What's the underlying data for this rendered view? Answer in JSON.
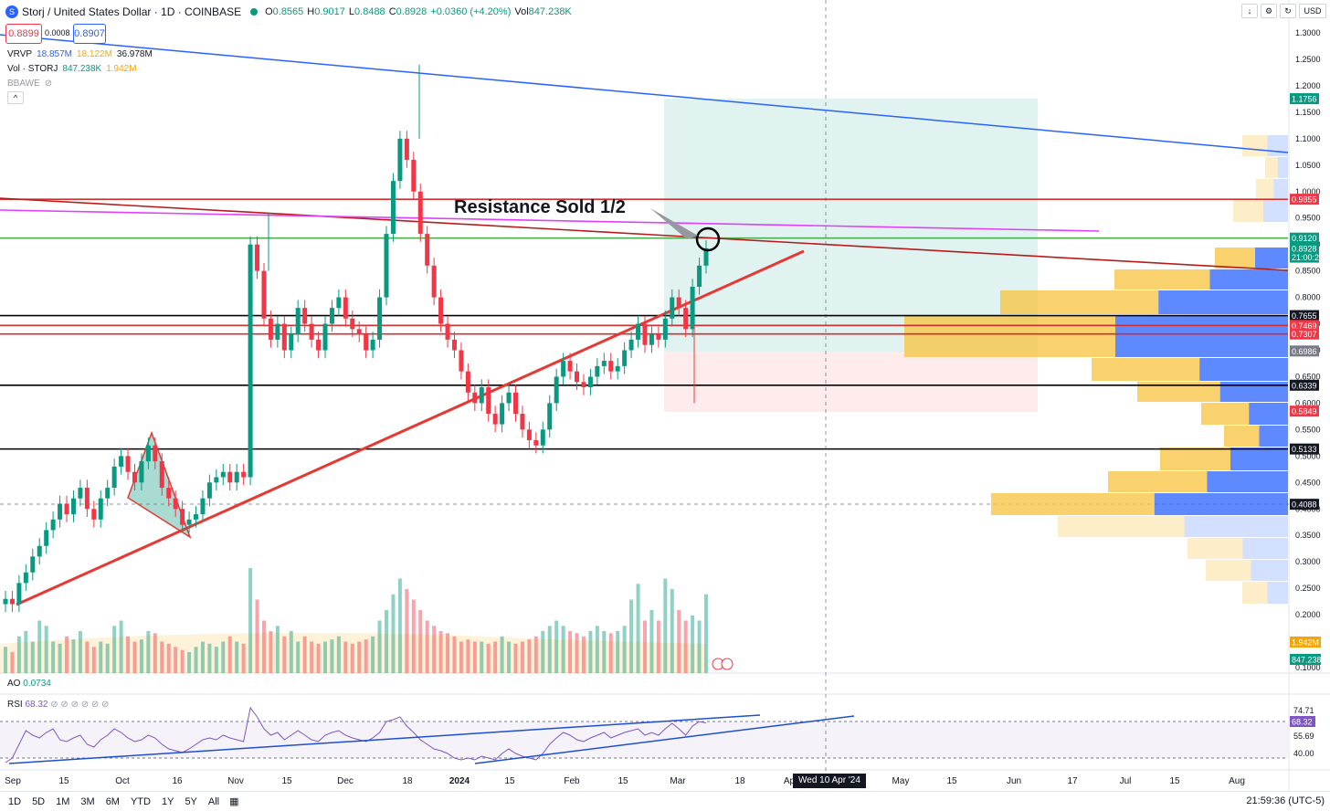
{
  "header": {
    "symbol": "Storj / United States Dollar · 1D · COINBASE",
    "o_label": "O",
    "o": "0.8565",
    "h_label": "H",
    "h": "0.9017",
    "l_label": "L",
    "l": "0.8488",
    "c_label": "C",
    "c": "0.8928",
    "change": "+0.0360 (+4.20%)",
    "vol_label": "Vol",
    "vol": "847.238K",
    "bid": "0.8899",
    "spread": "0.0008",
    "ask": "0.8907",
    "currency": "USD"
  },
  "indicators": {
    "vrvp_name": "VRVP",
    "vrvp_up": "18.857M",
    "vrvp_down": "18.122M",
    "vrvp_total": "36.978M",
    "vol_name": "Vol · STORJ",
    "vol_a": "847.238K",
    "vol_b": "1.942M",
    "bbawe": "BBAWE",
    "ao_name": "AO",
    "ao_val": "0.0734",
    "rsi_name": "RSI",
    "rsi_val": "68.32"
  },
  "annotation": "Resistance Sold 1/2",
  "chart_data": {
    "type": "line",
    "title": "",
    "price_ticks": [
      "1.3000",
      "1.2500",
      "1.2000",
      "1.1500",
      "1.1000",
      "1.0500",
      "1.0000",
      "0.9500",
      "0.9000",
      "0.8500",
      "0.8000",
      "0.7500",
      "0.7000",
      "0.6500",
      "0.6000",
      "0.5500",
      "0.5000",
      "0.4500",
      "0.4000",
      "0.3500",
      "0.3000",
      "0.2500",
      "0.2000",
      "0.1500",
      "0.1000"
    ],
    "price_axis": [
      0.1,
      1.3
    ],
    "price_labels": [
      {
        "text": "1.1756",
        "value": 1.1756,
        "color": "#089981"
      },
      {
        "text": "0.9855",
        "value": 0.9855,
        "color": "#f23645"
      },
      {
        "text": "0.9120",
        "value": 0.912,
        "color": "#089981"
      },
      {
        "text": "0.8928",
        "value": 0.8928,
        "color": "#089981"
      },
      {
        "text": "21:00:23",
        "value": 0.876,
        "color": "#089981"
      },
      {
        "text": "0.7655",
        "value": 0.7655,
        "color": "#131722"
      },
      {
        "text": "0.7469",
        "value": 0.7469,
        "color": "#f23645"
      },
      {
        "text": "0.7307",
        "value": 0.7307,
        "color": "#f23645"
      },
      {
        "text": "0.6986",
        "value": 0.6986,
        "color": "#787b86"
      },
      {
        "text": "0.6339",
        "value": 0.6339,
        "color": "#131722"
      },
      {
        "text": "0.5849",
        "value": 0.5849,
        "color": "#f23645"
      },
      {
        "text": "0.5133",
        "value": 0.5133,
        "color": "#131722"
      },
      {
        "text": "0.4088",
        "value": 0.4088,
        "color": "#131722"
      }
    ],
    "vol_labels": [
      {
        "text": "1.942M",
        "color": "#f7a600"
      },
      {
        "text": "847.238K",
        "color": "#089981"
      }
    ],
    "horizontal_levels": [
      {
        "value": 0.9855,
        "color": "#d32f2f"
      },
      {
        "value": 0.912,
        "color": "#4caf50"
      },
      {
        "value": 0.7655,
        "color": "#000000"
      },
      {
        "value": 0.7469,
        "color": "#d32f2f"
      },
      {
        "value": 0.7307,
        "color": "#d32f2f"
      },
      {
        "value": 0.6339,
        "color": "#000000"
      },
      {
        "value": 0.5133,
        "color": "#000000"
      }
    ],
    "x_ticks": [
      "Sep",
      "15",
      "Oct",
      "16",
      "Nov",
      "15",
      "Dec",
      "18",
      "2024",
      "15",
      "Feb",
      "15",
      "Mar",
      "18",
      "Ap",
      "May",
      "15",
      "Jun",
      "17",
      "Jul",
      "15",
      "Aug"
    ],
    "crosshair_date": "Wed 10 Apr '24",
    "candles_close": [
      0.23,
      0.22,
      0.26,
      0.28,
      0.31,
      0.33,
      0.36,
      0.38,
      0.41,
      0.39,
      0.42,
      0.44,
      0.4,
      0.38,
      0.42,
      0.44,
      0.48,
      0.5,
      0.47,
      0.45,
      0.49,
      0.52,
      0.49,
      0.44,
      0.42,
      0.4,
      0.37,
      0.38,
      0.39,
      0.42,
      0.45,
      0.46,
      0.47,
      0.45,
      0.47,
      0.46,
      0.9,
      0.85,
      0.76,
      0.72,
      0.75,
      0.7,
      0.73,
      0.78,
      0.75,
      0.72,
      0.7,
      0.75,
      0.78,
      0.8,
      0.76,
      0.74,
      0.73,
      0.7,
      0.72,
      0.8,
      0.92,
      1.02,
      1.1,
      1.06,
      1.0,
      0.92,
      0.86,
      0.8,
      0.75,
      0.72,
      0.7,
      0.66,
      0.62,
      0.6,
      0.63,
      0.58,
      0.56,
      0.6,
      0.62,
      0.58,
      0.55,
      0.53,
      0.52,
      0.55,
      0.6,
      0.65,
      0.68,
      0.66,
      0.64,
      0.63,
      0.65,
      0.67,
      0.68,
      0.66,
      0.67,
      0.7,
      0.72,
      0.75,
      0.71,
      0.73,
      0.72,
      0.76,
      0.8,
      0.78,
      0.74,
      0.82,
      0.86,
      0.8928
    ],
    "volume": [
      0.25,
      0.2,
      0.35,
      0.4,
      0.3,
      0.5,
      0.45,
      0.3,
      0.28,
      0.35,
      0.32,
      0.4,
      0.3,
      0.25,
      0.3,
      0.28,
      0.45,
      0.5,
      0.35,
      0.3,
      0.32,
      0.4,
      0.38,
      0.3,
      0.28,
      0.25,
      0.22,
      0.2,
      0.25,
      0.3,
      0.28,
      0.25,
      0.3,
      0.35,
      0.3,
      0.28,
      1.0,
      0.7,
      0.5,
      0.4,
      0.45,
      0.35,
      0.4,
      0.3,
      0.35,
      0.3,
      0.28,
      0.3,
      0.32,
      0.35,
      0.3,
      0.28,
      0.3,
      0.32,
      0.35,
      0.5,
      0.6,
      0.75,
      0.9,
      0.8,
      0.7,
      0.6,
      0.5,
      0.45,
      0.4,
      0.38,
      0.35,
      0.3,
      0.32,
      0.3,
      0.3,
      0.28,
      0.3,
      0.35,
      0.3,
      0.28,
      0.3,
      0.32,
      0.35,
      0.4,
      0.45,
      0.5,
      0.45,
      0.4,
      0.38,
      0.35,
      0.4,
      0.45,
      0.4,
      0.38,
      0.4,
      0.45,
      0.7,
      0.85,
      0.5,
      0.6,
      0.5,
      0.9,
      0.8,
      0.6,
      0.5,
      0.55,
      0.5,
      0.75
    ],
    "rsi_ticks": [
      "74.71",
      "68.32",
      "55.69",
      "40.00"
    ],
    "rsi": [
      25,
      30,
      45,
      60,
      55,
      52,
      58,
      62,
      50,
      48,
      52,
      55,
      45,
      42,
      50,
      55,
      62,
      58,
      52,
      48,
      50,
      55,
      52,
      45,
      40,
      38,
      36,
      40,
      45,
      50,
      52,
      50,
      55,
      52,
      50,
      48,
      85,
      75,
      62,
      55,
      58,
      50,
      55,
      60,
      55,
      50,
      48,
      55,
      58,
      60,
      55,
      52,
      50,
      48,
      52,
      58,
      70,
      72,
      75,
      65,
      58,
      50,
      45,
      40,
      38,
      35,
      30,
      28,
      30,
      28,
      32,
      30,
      28,
      35,
      40,
      35,
      32,
      30,
      28,
      35,
      45,
      52,
      58,
      55,
      50,
      48,
      52,
      55,
      58,
      52,
      55,
      58,
      60,
      62,
      55,
      58,
      55,
      62,
      68,
      62,
      55,
      65,
      70,
      68.32
    ]
  }
}
